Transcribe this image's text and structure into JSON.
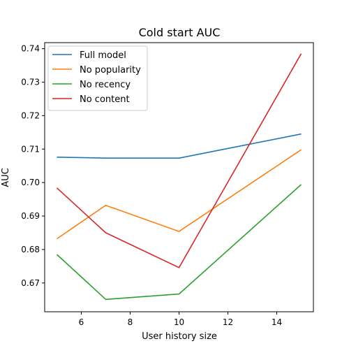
{
  "chart_data": {
    "type": "line",
    "title": "Cold start AUC",
    "xlabel": "User history size",
    "ylabel": "AUC",
    "x": [
      5,
      7,
      10,
      15
    ],
    "xlim": [
      4.5,
      15.5
    ],
    "ylim": [
      0.6614,
      0.7418
    ],
    "xticks": [
      6,
      8,
      10,
      12,
      14
    ],
    "yticks": [
      0.67,
      0.68,
      0.69,
      0.7,
      0.71,
      0.72,
      0.73,
      0.74
    ],
    "xtick_labels": [
      "6",
      "8",
      "10",
      "12",
      "14"
    ],
    "ytick_labels": [
      "0.67",
      "0.68",
      "0.69",
      "0.70",
      "0.71",
      "0.72",
      "0.73",
      "0.74"
    ],
    "grid": false,
    "legend_position": "top-left",
    "series": [
      {
        "name": "Full model",
        "color": "#1f77b4",
        "values": [
          0.7076,
          0.7073,
          0.7073,
          0.7145
        ]
      },
      {
        "name": "No popularity",
        "color": "#ff7f0e",
        "values": [
          0.6832,
          0.6932,
          0.6854,
          0.7098
        ]
      },
      {
        "name": "No recency",
        "color": "#2ca02c",
        "values": [
          0.6785,
          0.6651,
          0.6667,
          0.6994
        ]
      },
      {
        "name": "No content",
        "color": "#d62728",
        "values": [
          0.6984,
          0.685,
          0.6746,
          0.7385
        ]
      }
    ]
  }
}
